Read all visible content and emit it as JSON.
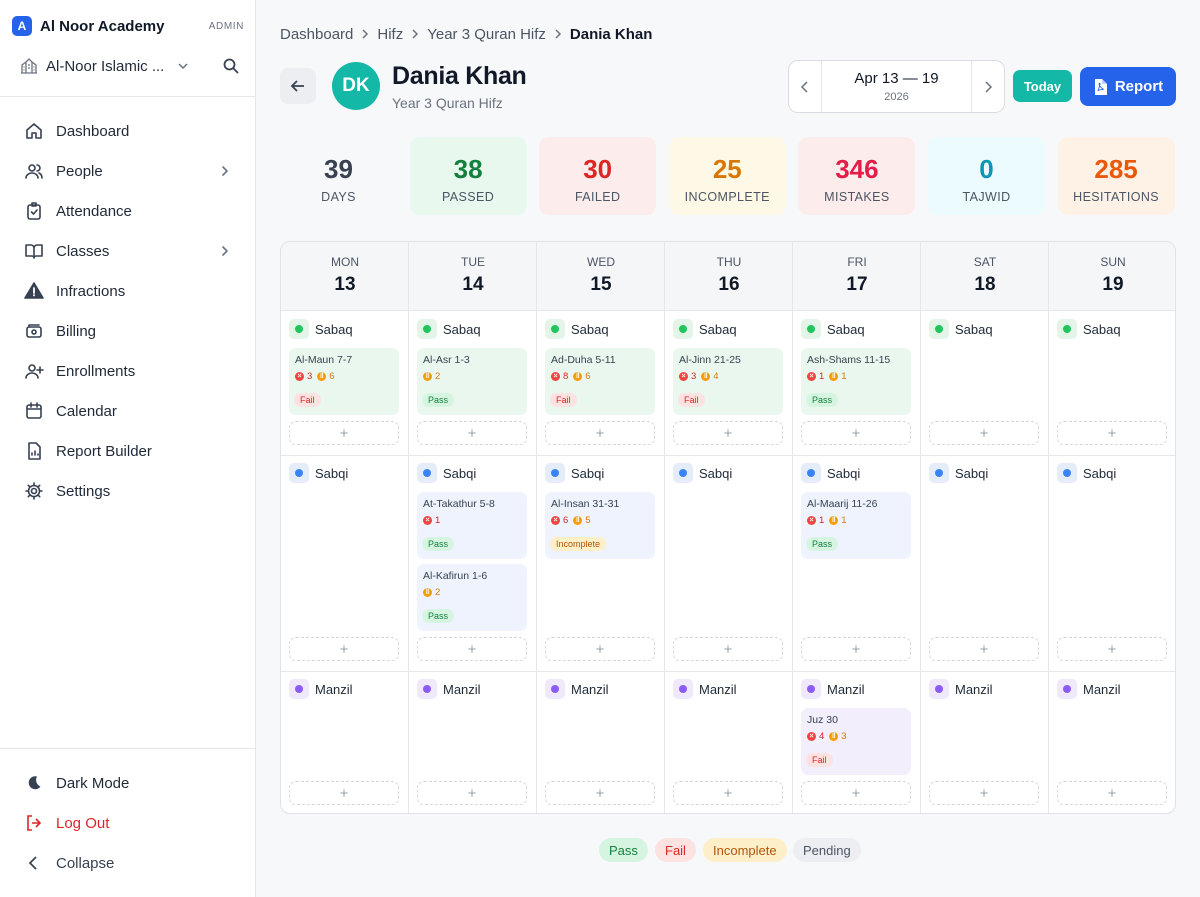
{
  "sidebar": {
    "brand_letter": "A",
    "brand_name": "Al Noor Academy",
    "role": "ADMIN",
    "school_name": "Al-Noor Islamic ...",
    "nav": [
      {
        "label": "Dashboard",
        "icon": "home-icon"
      },
      {
        "label": "People",
        "icon": "users-icon",
        "has_submenu": true
      },
      {
        "label": "Attendance",
        "icon": "clipboard-check-icon"
      },
      {
        "label": "Classes",
        "icon": "book-open-icon",
        "has_submenu": true
      },
      {
        "label": "Infractions",
        "icon": "warning-icon"
      },
      {
        "label": "Billing",
        "icon": "billing-icon"
      },
      {
        "label": "Enrollments",
        "icon": "user-plus-icon"
      },
      {
        "label": "Calendar",
        "icon": "calendar-icon"
      },
      {
        "label": "Report Builder",
        "icon": "report-icon"
      },
      {
        "label": "Settings",
        "icon": "gear-icon"
      }
    ],
    "bottom": {
      "dark_mode": "Dark Mode",
      "logout": "Log Out",
      "collapse": "Collapse"
    }
  },
  "breadcrumb": [
    "Dashboard",
    "Hifz",
    "Year 3 Quran Hifz",
    "Dania Khan"
  ],
  "student": {
    "initials": "DK",
    "name": "Dania Khan",
    "class": "Year 3 Quran Hifz"
  },
  "week": {
    "range": "Apr 13 — 19",
    "year": "2026",
    "today_label": "Today",
    "report_label": "Report"
  },
  "stats": [
    {
      "value": "39",
      "label": "DAYS",
      "bg": "#f7f8fa",
      "color": "#374151",
      "label_color": "#4b5563"
    },
    {
      "value": "38",
      "label": "PASSED",
      "bg": "#e8f8ef",
      "color": "#15803d",
      "label_color": "#4b5563"
    },
    {
      "value": "30",
      "label": "FAILED",
      "bg": "#fdecec",
      "color": "#dc2626",
      "label_color": "#4b5563"
    },
    {
      "value": "25",
      "label": "INCOMPLETE",
      "bg": "#fef8e6",
      "color": "#d97706",
      "label_color": "#4b5563"
    },
    {
      "value": "346",
      "label": "MISTAKES",
      "bg": "#fdecec",
      "color": "#e11d48",
      "label_color": "#4b5563"
    },
    {
      "value": "0",
      "label": "TAJWID",
      "bg": "#ebfbfe",
      "color": "#0e94b4",
      "label_color": "#4b5563"
    },
    {
      "value": "285",
      "label": "HESITATIONS",
      "bg": "#fef2e7",
      "color": "#ea580c",
      "label_color": "#4b5563"
    }
  ],
  "calendar": {
    "days": [
      {
        "name": "MON",
        "date": "13"
      },
      {
        "name": "TUE",
        "date": "14"
      },
      {
        "name": "WED",
        "date": "15"
      },
      {
        "name": "THU",
        "date": "16"
      },
      {
        "name": "FRI",
        "date": "17"
      },
      {
        "name": "SAT",
        "date": "18"
      },
      {
        "name": "SUN",
        "date": "19"
      }
    ],
    "add_label": "+",
    "tracks": [
      {
        "name": "Sabaq",
        "dot": "#22c55e",
        "tint": "#e3f5e9",
        "card": "#eaf7ee",
        "entries": [
          [
            {
              "surah": "Al-Maun 7-7",
              "mistakes": "3",
              "hesitations": "6",
              "status": "Fail"
            }
          ],
          [
            {
              "surah": "Al-Asr 1-3",
              "mistakes": null,
              "hesitations": "2",
              "status": "Pass"
            }
          ],
          [
            {
              "surah": "Ad-Duha 5-11",
              "mistakes": "8",
              "hesitations": "6",
              "status": "Fail"
            }
          ],
          [
            {
              "surah": "Al-Jinn 21-25",
              "mistakes": "3",
              "hesitations": "4",
              "status": "Fail"
            }
          ],
          [
            {
              "surah": "Ash-Shams 11-15",
              "mistakes": "1",
              "hesitations": "1",
              "status": "Pass"
            }
          ],
          [],
          []
        ]
      },
      {
        "name": "Sabqi",
        "dot": "#3b82f6",
        "tint": "#e5edfb",
        "card": "#eef3fd",
        "entries": [
          [],
          [
            {
              "surah": "At-Takathur 5-8",
              "mistakes": "1",
              "hesitations": null,
              "status": "Pass"
            },
            {
              "surah": "Al-Kafirun 1-6",
              "mistakes": null,
              "hesitations": "2",
              "status": "Pass"
            }
          ],
          [
            {
              "surah": "Al-Insan 31-31",
              "mistakes": "6",
              "hesitations": "5",
              "status": "Incomplete"
            }
          ],
          [],
          [
            {
              "surah": "Al-Maarij 11-26",
              "mistakes": "1",
              "hesitations": "1",
              "status": "Pass"
            }
          ],
          [],
          []
        ]
      },
      {
        "name": "Manzil",
        "dot": "#8b5cf6",
        "tint": "#efe9fb",
        "card": "#f2eefc",
        "entries": [
          [],
          [],
          [],
          [],
          [
            {
              "surah": "Juz 30",
              "mistakes": "4",
              "hesitations": "3",
              "status": "Fail"
            }
          ],
          [],
          []
        ]
      }
    ]
  },
  "status_colors": {
    "Pass": {
      "bg": "#d6f5e1",
      "fg": "#15803d"
    },
    "Fail": {
      "bg": "#fde2e2",
      "fg": "#dc2626"
    },
    "Incomplete": {
      "bg": "#fdf0c8",
      "fg": "#b45309"
    },
    "Pending": {
      "bg": "#eceef1",
      "fg": "#4b5563"
    }
  },
  "legend": [
    "Pass",
    "Fail",
    "Incomplete",
    "Pending"
  ]
}
